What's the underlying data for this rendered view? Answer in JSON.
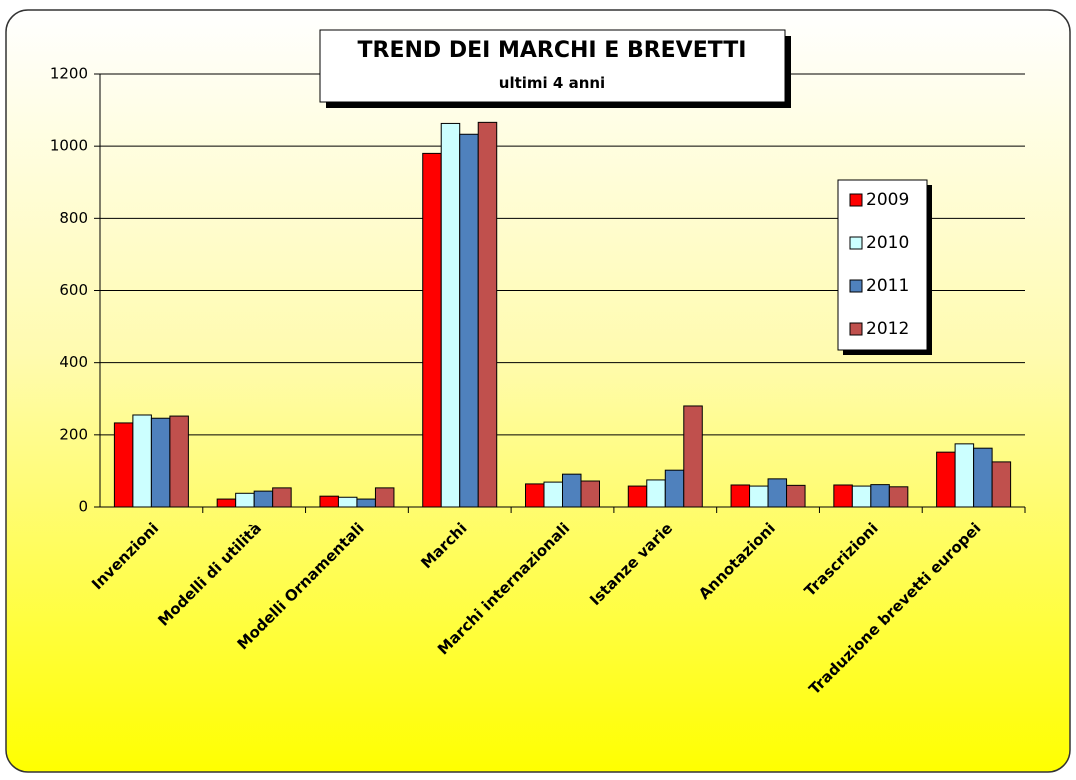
{
  "chart_data": {
    "type": "bar",
    "title": "TREND DEI MARCHI E BREVETTI",
    "subtitle": "ultimi 4 anni",
    "categories": [
      "Invenzioni",
      "Modelli di utilità",
      "Modelli Ornamentali",
      "Marchi",
      "Marchi internazionali",
      "Istanze varie",
      "Annotazioni",
      "Trascrizioni",
      "Traduzione brevetti europei"
    ],
    "series": [
      {
        "name": "2009",
        "color": "#ff0000",
        "values": [
          233,
          22,
          30,
          980,
          64,
          58,
          61,
          61,
          152
        ]
      },
      {
        "name": "2010",
        "color": "#ccffff",
        "values": [
          255,
          38,
          27,
          1063,
          69,
          75,
          58,
          58,
          175
        ]
      },
      {
        "name": "2011",
        "color": "#4f81bd",
        "values": [
          246,
          44,
          22,
          1033,
          91,
          102,
          78,
          62,
          163
        ]
      },
      {
        "name": "2012",
        "color": "#c0504d",
        "values": [
          252,
          53,
          53,
          1066,
          72,
          280,
          60,
          56,
          125
        ]
      }
    ],
    "ylim": [
      0,
      1200
    ],
    "yticks": [
      0,
      200,
      400,
      600,
      800,
      1000,
      1200
    ],
    "grid": true
  }
}
